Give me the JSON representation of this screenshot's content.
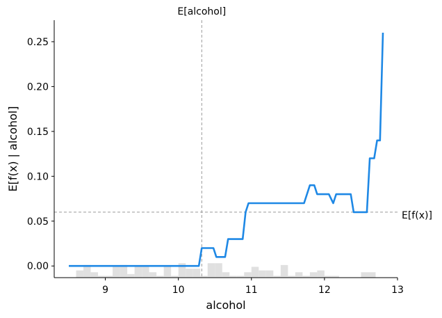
{
  "chart_data": {
    "type": "line",
    "xlabel": "alcohol",
    "ylabel": "E[f(x) | alcohol]",
    "xlim": [
      8.3,
      13.0
    ],
    "ylim": [
      -0.013,
      0.274
    ],
    "xticks": [
      "9",
      "10",
      "11",
      "12",
      "13"
    ],
    "xtick_values": [
      9,
      10,
      11,
      12,
      13
    ],
    "yticks": [
      "0.00",
      "0.05",
      "0.10",
      "0.15",
      "0.20",
      "0.25"
    ],
    "ytick_values": [
      0.0,
      0.05,
      0.1,
      0.15,
      0.2,
      0.25
    ],
    "series": [
      {
        "color": "#1e88e5",
        "x": [
          8.5,
          10.28,
          10.32,
          10.48,
          10.52,
          10.64,
          10.68,
          10.88,
          10.92,
          10.96,
          11.0,
          11.72,
          11.8,
          11.86,
          11.9,
          12.06,
          12.12,
          12.16,
          12.36,
          12.4,
          12.58,
          12.62,
          12.68,
          12.72,
          12.76,
          12.8
        ],
        "y": [
          0.0,
          0.0,
          0.02,
          0.02,
          0.01,
          0.01,
          0.03,
          0.03,
          0.06,
          0.07,
          0.07,
          0.07,
          0.09,
          0.09,
          0.08,
          0.08,
          0.07,
          0.08,
          0.08,
          0.06,
          0.06,
          0.12,
          0.12,
          0.14,
          0.14,
          0.26
        ]
      }
    ],
    "reference_lines": {
      "vertical": {
        "label": "E[alcohol]",
        "x": 10.32,
        "color": "#999999"
      },
      "horizontal": {
        "label": "E[f(x)]",
        "y": 0.06,
        "color": "#999999"
      }
    },
    "histogram": {
      "color": "#e0e0e0",
      "bins": [
        8.65,
        8.75,
        8.85,
        8.95,
        9.05,
        9.15,
        9.25,
        9.35,
        9.45,
        9.55,
        9.65,
        9.75,
        9.85,
        9.95,
        10.05,
        10.15,
        10.25,
        10.35,
        10.45,
        10.55,
        10.65,
        10.75,
        10.85,
        10.95,
        11.05,
        11.15,
        11.25,
        11.35,
        11.45,
        11.55,
        11.65,
        11.75,
        11.85,
        11.95,
        12.05,
        12.15,
        12.25,
        12.35,
        12.45,
        12.55,
        12.65
      ],
      "counts": [
        0.4,
        0.7,
        0.3,
        0.1,
        0.1,
        0.6,
        0.7,
        0.2,
        0.6,
        0.6,
        0.3,
        0.1,
        0.6,
        0.1,
        0.8,
        0.5,
        0.5,
        0.1,
        0.8,
        0.8,
        0.3,
        0.1,
        0.1,
        0.3,
        0.6,
        0.4,
        0.4,
        0.1,
        0.7,
        0.1,
        0.3,
        0.1,
        0.3,
        0.4,
        0.1,
        0.1,
        0.0,
        0.0,
        0.0,
        0.3,
        0.3
      ],
      "bin_width": 0.1,
      "max_height_fraction": 0.07
    },
    "grid": false,
    "spines": [
      "left",
      "bottom"
    ]
  }
}
